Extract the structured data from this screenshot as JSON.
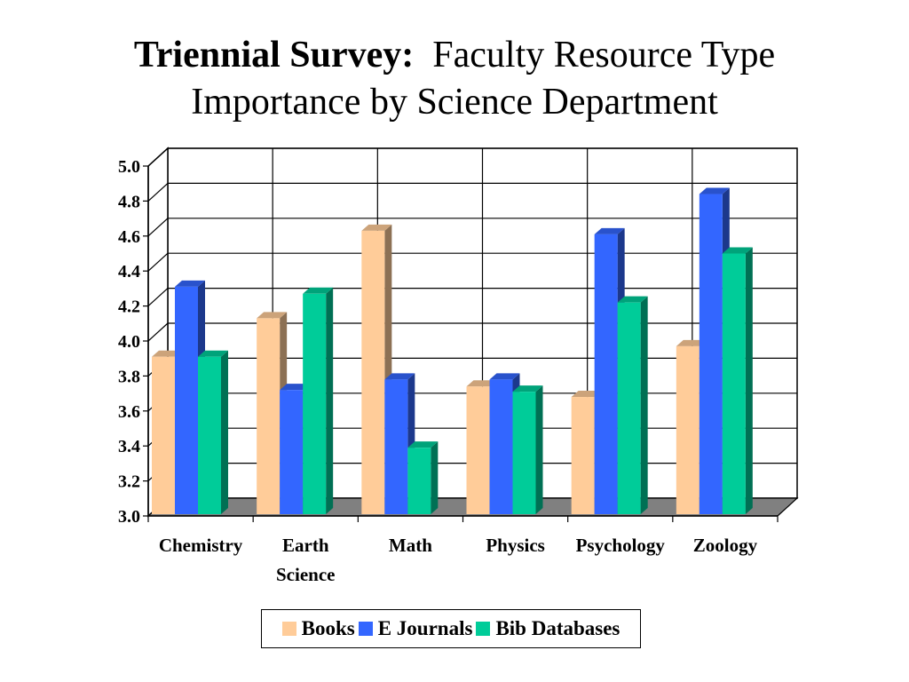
{
  "title": {
    "bold": "Triennial Survey:",
    "rest1": "Faculty Resource Type",
    "rest2": "Importance by Science Department"
  },
  "chart_data": {
    "type": "bar",
    "categories": [
      "Chemistry",
      "Earth Science",
      "Math",
      "Physics",
      "Psychology",
      "Zoology"
    ],
    "category_label_lines": [
      [
        "Chemistry"
      ],
      [
        "Earth",
        "Science"
      ],
      [
        "Math"
      ],
      [
        "Physics"
      ],
      [
        "Psychology"
      ],
      [
        "Zoology"
      ]
    ],
    "series": [
      {
        "name": "Books",
        "color": "#FFCC99",
        "values": [
          3.91,
          4.13,
          4.63,
          3.74,
          3.68,
          3.97
        ]
      },
      {
        "name": "E Journals",
        "color": "#3366FF",
        "values": [
          4.31,
          3.72,
          3.78,
          3.78,
          4.61,
          4.84
        ]
      },
      {
        "name": "Bib Databases",
        "color": "#00CC99",
        "values": [
          3.91,
          4.27,
          3.39,
          3.71,
          4.22,
          4.5
        ]
      }
    ],
    "ylim": [
      3.0,
      5.0
    ],
    "yticks": [
      "3.0",
      "3.2",
      "3.4",
      "3.6",
      "3.8",
      "4.0",
      "4.2",
      "4.4",
      "4.6",
      "4.8",
      "5.0"
    ],
    "grid": true,
    "legend_position": "bottom"
  }
}
